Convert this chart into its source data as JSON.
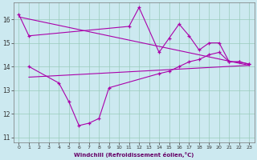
{
  "xlabel": "Windchill (Refroidissement éolien,°C)",
  "background_color": "#cce9f0",
  "grid_color": "#99ccbb",
  "line_color": "#aa00aa",
  "upper_x": [
    0,
    1,
    11,
    12,
    14,
    15,
    16,
    17,
    18,
    19,
    20,
    21,
    22,
    23
  ],
  "upper_y": [
    16.2,
    15.3,
    15.7,
    16.5,
    14.6,
    15.2,
    15.8,
    15.3,
    14.7,
    15.0,
    15.0,
    14.2,
    14.2,
    14.1
  ],
  "lower_x": [
    1,
    4,
    5,
    6,
    7,
    8,
    9,
    14,
    15,
    16,
    17,
    18,
    19,
    20,
    21,
    22,
    23
  ],
  "lower_y": [
    14.0,
    13.3,
    12.5,
    11.5,
    11.6,
    11.8,
    13.1,
    13.7,
    13.8,
    14.0,
    14.2,
    14.3,
    14.5,
    14.6,
    14.2,
    14.2,
    14.1
  ],
  "trend1_x": [
    0,
    23
  ],
  "trend1_y": [
    16.1,
    14.05
  ],
  "trend2_x": [
    1,
    23
  ],
  "trend2_y": [
    13.55,
    14.05
  ],
  "ylim": [
    10.8,
    16.7
  ],
  "yticks": [
    11,
    12,
    13,
    14,
    15,
    16
  ],
  "xticks": [
    0,
    1,
    2,
    3,
    4,
    5,
    6,
    7,
    8,
    9,
    10,
    11,
    12,
    13,
    14,
    15,
    16,
    17,
    18,
    19,
    20,
    21,
    22,
    23
  ],
  "xlim": [
    -0.5,
    23.5
  ]
}
